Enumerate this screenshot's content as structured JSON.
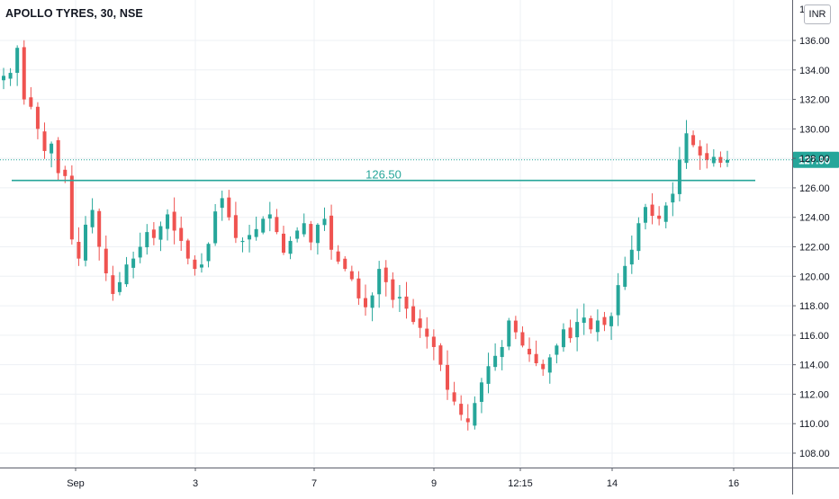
{
  "header": {
    "symbol_title": "APOLLO TYRES, 30, NSE",
    "currency": "INR"
  },
  "chart_data": {
    "type": "candlestick",
    "title": "APOLLO TYRES, 30, NSE",
    "price_axis": {
      "ticks": [
        108,
        110,
        112,
        114,
        116,
        118,
        120,
        122,
        124,
        126,
        128,
        130,
        132,
        134,
        136
      ],
      "tick_labels": [
        "108.00",
        "110.00",
        "112.00",
        "114.00",
        "116.00",
        "118.00",
        "120.00",
        "122.00",
        "124.00",
        "126.00",
        "128.00",
        "130.00",
        "132.00",
        "134.00",
        "136.00"
      ],
      "range": [
        106.5,
        138.5
      ]
    },
    "time_axis": {
      "labels": [
        "Sep",
        "3",
        "7",
        "9",
        "12:15",
        "14",
        "16"
      ]
    },
    "last_price": {
      "value": 127.9,
      "label": "127.90",
      "color": "#26a69a"
    },
    "horizontal_level": {
      "value": 126.5,
      "label": "126.50",
      "color": "#26a69a"
    },
    "colors": {
      "up": "#26a69a",
      "down": "#ef5350",
      "grid": "#edf0f4",
      "axis_text": "#131722"
    },
    "grid": true,
    "candles_close_path": [
      133.6,
      133.8,
      135.5,
      132.0,
      131.5,
      130.0,
      128.5,
      129.0,
      127.0,
      126.8,
      122.5,
      121.2,
      123.5,
      124.5,
      122.0,
      120.2,
      118.8,
      119.6,
      120.8,
      121.2,
      122.0,
      123.0,
      122.6,
      123.4,
      124.2,
      123.1,
      122.4,
      121.2,
      120.5,
      120.8,
      122.2,
      124.4,
      125.3,
      124.0,
      122.6,
      122.4,
      122.8,
      123.2,
      123.9,
      124.2,
      123.0,
      121.6,
      122.4,
      123.1,
      123.6,
      122.3,
      123.5,
      123.9,
      121.8,
      121.0,
      120.5,
      119.8,
      118.5,
      117.9,
      118.7,
      120.5,
      119.6,
      118.4,
      118.6,
      117.8,
      116.9,
      116.5,
      115.9,
      115.2,
      114.0,
      112.3,
      111.5,
      110.6,
      110.1,
      111.4,
      112.8,
      113.9,
      114.6,
      115.2,
      117.0,
      116.2,
      115.3,
      114.7,
      114.1,
      113.7,
      114.5,
      115.3,
      116.4,
      115.8,
      116.9,
      117.2,
      116.4,
      117.0,
      116.7,
      117.3,
      119.4,
      120.7,
      121.8,
      123.6,
      124.7,
      124.1,
      123.9,
      124.8,
      125.6,
      127.9,
      129.7,
      128.9,
      128.2,
      127.9,
      128.1,
      127.7,
      127.9
    ]
  }
}
